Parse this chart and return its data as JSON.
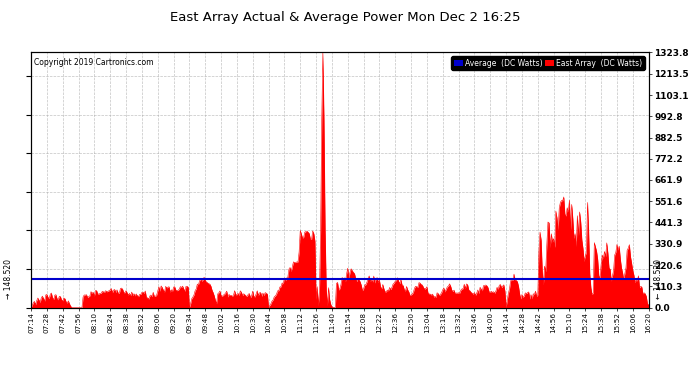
{
  "title": "East Array Actual & Average Power Mon Dec 2 16:25",
  "copyright": "Copyright 2019 Cartronics.com",
  "legend_avg": "Average  (DC Watts)",
  "legend_east": "East Array  (DC Watts)",
  "avg_value": 148.52,
  "y_right_ticks": [
    0.0,
    110.3,
    220.6,
    330.9,
    441.3,
    551.6,
    661.9,
    772.2,
    882.5,
    992.8,
    1103.1,
    1213.5,
    1323.8
  ],
  "ylim": [
    0,
    1323.8
  ],
  "bg_color": "#ffffff",
  "grid_color": "#aaaaaa",
  "fill_color": "#ff0000",
  "line_color": "#ff0000",
  "avg_line_color": "#0000cc",
  "x_tick_labels": [
    "07:14",
    "07:28",
    "07:42",
    "07:56",
    "08:10",
    "08:24",
    "08:38",
    "08:52",
    "09:06",
    "09:20",
    "09:34",
    "09:48",
    "10:02",
    "10:16",
    "10:30",
    "10:44",
    "10:58",
    "11:12",
    "11:26",
    "11:40",
    "11:54",
    "12:08",
    "12:22",
    "12:36",
    "12:50",
    "13:04",
    "13:18",
    "13:32",
    "13:46",
    "14:00",
    "14:14",
    "14:28",
    "14:42",
    "14:56",
    "15:10",
    "15:24",
    "15:38",
    "15:52",
    "16:06",
    "16:20"
  ],
  "avg_label": "148.520"
}
